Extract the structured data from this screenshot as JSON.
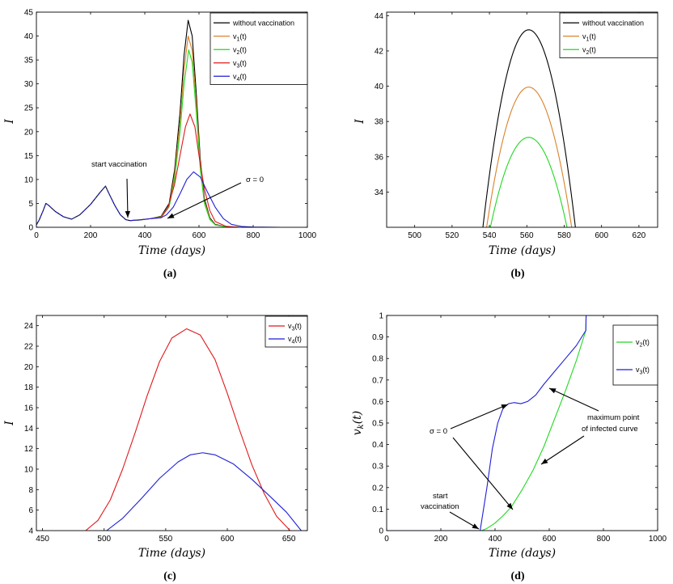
{
  "colors": {
    "without_vaccination": "#000000",
    "v1": "#d9822b",
    "v2": "#22d822",
    "v3": "#e0191b",
    "v4": "#1f1fd6"
  },
  "chart_data": [
    {
      "panel": "(a)",
      "type": "line",
      "xlabel": "Time (days)",
      "ylabel": "I",
      "xlim": [
        0,
        1000
      ],
      "ylim": [
        0,
        45
      ],
      "xticks": [
        0,
        200,
        400,
        600,
        800,
        1000
      ],
      "yticks": [
        0,
        5,
        10,
        15,
        20,
        25,
        30,
        35,
        40,
        45
      ],
      "legend": "top-right",
      "series": [
        {
          "name": "without vaccination",
          "color": "#000000",
          "points": [
            [
              0,
              0.5
            ],
            [
              10,
              1.5
            ],
            [
              25,
              3.5
            ],
            [
              35,
              5.0
            ],
            [
              45,
              4.6
            ],
            [
              70,
              3.3
            ],
            [
              100,
              2.2
            ],
            [
              130,
              1.7
            ],
            [
              160,
              2.6
            ],
            [
              200,
              4.8
            ],
            [
              235,
              7.3
            ],
            [
              255,
              8.6
            ],
            [
              270,
              6.8
            ],
            [
              290,
              4.5
            ],
            [
              310,
              2.6
            ],
            [
              330,
              1.6
            ],
            [
              345,
              1.4
            ],
            [
              380,
              1.5
            ],
            [
              420,
              1.8
            ],
            [
              460,
              2.3
            ],
            [
              490,
              5
            ],
            [
              510,
              12
            ],
            [
              530,
              24
            ],
            [
              545,
              36
            ],
            [
              560,
              43.3
            ],
            [
              575,
              40
            ],
            [
              590,
              28
            ],
            [
              605,
              14
            ],
            [
              620,
              6
            ],
            [
              640,
              2
            ],
            [
              660,
              0.6
            ],
            [
              700,
              0.1
            ],
            [
              750,
              0
            ]
          ]
        },
        {
          "name": "v1(t)",
          "color": "#d9822b",
          "points": [
            [
              345,
              1.4
            ],
            [
              380,
              1.5
            ],
            [
              420,
              1.8
            ],
            [
              460,
              2.2
            ],
            [
              490,
              4.5
            ],
            [
              510,
              11
            ],
            [
              530,
              22
            ],
            [
              545,
              33
            ],
            [
              560,
              40
            ],
            [
              575,
              37
            ],
            [
              590,
              26
            ],
            [
              605,
              13
            ],
            [
              620,
              5.5
            ],
            [
              640,
              1.8
            ],
            [
              660,
              0.5
            ],
            [
              700,
              0.1
            ],
            [
              750,
              0
            ]
          ]
        },
        {
          "name": "v2(t)",
          "color": "#22d822",
          "points": [
            [
              345,
              1.4
            ],
            [
              380,
              1.5
            ],
            [
              420,
              1.8
            ],
            [
              460,
              2.1
            ],
            [
              490,
              4.3
            ],
            [
              510,
              10
            ],
            [
              530,
              20
            ],
            [
              545,
              30
            ],
            [
              562,
              37.1
            ],
            [
              575,
              34.5
            ],
            [
              590,
              24
            ],
            [
              605,
              12
            ],
            [
              620,
              5
            ],
            [
              640,
              1.6
            ],
            [
              660,
              0.5
            ],
            [
              700,
              0.1
            ],
            [
              750,
              0
            ]
          ]
        },
        {
          "name": "v3(t)",
          "color": "#e0191b",
          "points": [
            [
              345,
              1.4
            ],
            [
              380,
              1.55
            ],
            [
              420,
              1.8
            ],
            [
              460,
              2.0
            ],
            [
              485,
              4
            ],
            [
              510,
              9
            ],
            [
              530,
              15
            ],
            [
              550,
              21
            ],
            [
              567,
              23.7
            ],
            [
              585,
              21
            ],
            [
              600,
              15
            ],
            [
              620,
              8
            ],
            [
              640,
              3.5
            ],
            [
              660,
              1.2
            ],
            [
              700,
              0.2
            ],
            [
              750,
              0
            ]
          ]
        },
        {
          "name": "v4(t)",
          "color": "#1f1fd6",
          "points": [
            [
              345,
              1.4
            ],
            [
              380,
              1.55
            ],
            [
              420,
              1.8
            ],
            [
              460,
              2.0
            ],
            [
              480,
              2.6
            ],
            [
              505,
              4.2
            ],
            [
              530,
              7
            ],
            [
              555,
              10
            ],
            [
              580,
              11.6
            ],
            [
              605,
              10.5
            ],
            [
              630,
              7.5
            ],
            [
              660,
              4.2
            ],
            [
              690,
              1.8
            ],
            [
              720,
              0.6
            ],
            [
              760,
              0.15
            ],
            [
              800,
              0.05
            ],
            [
              900,
              0
            ]
          ]
        }
      ],
      "annotations": [
        {
          "text": "start vaccination"
        },
        {
          "text": "σ = 0"
        }
      ]
    },
    {
      "panel": "(b)",
      "type": "line",
      "xlabel": "Time (days)",
      "ylabel": "I",
      "xlim": [
        485,
        630
      ],
      "ylim": [
        32,
        44.2
      ],
      "xticks": [
        500,
        520,
        540,
        560,
        580,
        600,
        620
      ],
      "yticks": [
        34,
        36,
        38,
        40,
        42,
        44
      ],
      "legend": "top-right",
      "series": [
        {
          "name": "without vaccination",
          "color": "#000000",
          "peak_x": 561,
          "peak_y": 43.2,
          "base_left": 536.5,
          "base_right": 586,
          "base_y": 32
        },
        {
          "name": "v1(t)",
          "color": "#d9822b",
          "peak_x": 561,
          "peak_y": 39.95,
          "base_left": 538.5,
          "base_right": 584,
          "base_y": 32
        },
        {
          "name": "v2(t)",
          "color": "#22d822",
          "peak_x": 561,
          "peak_y": 37.1,
          "base_left": 540.5,
          "base_right": 581.5,
          "base_y": 32
        }
      ]
    },
    {
      "panel": "(c)",
      "type": "line",
      "xlabel": "Time (days)",
      "ylabel": "I",
      "xlim": [
        445,
        665
      ],
      "ylim": [
        4,
        25
      ],
      "xticks": [
        450,
        500,
        550,
        600,
        650
      ],
      "yticks": [
        4,
        6,
        8,
        10,
        12,
        14,
        16,
        18,
        20,
        22,
        24
      ],
      "legend": "top-right",
      "series": [
        {
          "name": "v3(t)",
          "color": "#e0191b",
          "points": [
            [
              485,
              4
            ],
            [
              495,
              5
            ],
            [
              505,
              7
            ],
            [
              515,
              10
            ],
            [
              525,
              13.5
            ],
            [
              535,
              17.2
            ],
            [
              545,
              20.5
            ],
            [
              555,
              22.8
            ],
            [
              567,
              23.7
            ],
            [
              578,
              23.1
            ],
            [
              590,
              20.7
            ],
            [
              600,
              17.4
            ],
            [
              610,
              13.8
            ],
            [
              620,
              10.4
            ],
            [
              630,
              7.6
            ],
            [
              640,
              5.4
            ],
            [
              651,
              4
            ]
          ]
        },
        {
          "name": "v4(t)",
          "color": "#1f1fd6",
          "points": [
            [
              502,
              4
            ],
            [
              515,
              5.2
            ],
            [
              530,
              7.1
            ],
            [
              545,
              9.1
            ],
            [
              560,
              10.7
            ],
            [
              570,
              11.4
            ],
            [
              580,
              11.6
            ],
            [
              590,
              11.4
            ],
            [
              605,
              10.5
            ],
            [
              620,
              9.0
            ],
            [
              635,
              7.3
            ],
            [
              648,
              5.8
            ],
            [
              660,
              4
            ]
          ]
        }
      ]
    },
    {
      "panel": "(d)",
      "type": "line",
      "xlabel": "Time (days)",
      "ylabel": "v_k(t)",
      "xlim": [
        0,
        1000
      ],
      "ylim": [
        0,
        1
      ],
      "xticks": [
        0,
        200,
        400,
        600,
        800,
        1000
      ],
      "yticks": [
        0,
        0.1,
        0.2,
        0.3,
        0.4,
        0.5,
        0.6,
        0.7,
        0.8,
        0.9,
        1
      ],
      "legend": "top-right",
      "series": [
        {
          "name": "v2(t)",
          "color": "#22d822",
          "points": [
            [
              0,
              0
            ],
            [
              350,
              0
            ],
            [
              370,
              0.01
            ],
            [
              400,
              0.035
            ],
            [
              430,
              0.07
            ],
            [
              460,
              0.11
            ],
            [
              500,
              0.19
            ],
            [
              540,
              0.28
            ],
            [
              580,
              0.39
            ],
            [
              620,
              0.52
            ],
            [
              660,
              0.65
            ],
            [
              700,
              0.79
            ],
            [
              735,
              0.93
            ],
            [
              736,
              1
            ],
            [
              900,
              1
            ]
          ]
        },
        {
          "name": "v3(t)",
          "color": "#1f1fd6",
          "points": [
            [
              0,
              0
            ],
            [
              345,
              0
            ],
            [
              370,
              0.2
            ],
            [
              390,
              0.38
            ],
            [
              410,
              0.5
            ],
            [
              430,
              0.57
            ],
            [
              450,
              0.59
            ],
            [
              470,
              0.595
            ],
            [
              495,
              0.59
            ],
            [
              520,
              0.6
            ],
            [
              550,
              0.63
            ],
            [
              580,
              0.68
            ],
            [
              620,
              0.74
            ],
            [
              660,
              0.8
            ],
            [
              700,
              0.86
            ],
            [
              735,
              0.93
            ],
            [
              736,
              1
            ],
            [
              900,
              1
            ]
          ]
        }
      ],
      "annotations": [
        {
          "text": "σ = 0"
        },
        {
          "text": "start"
        },
        {
          "text": "vaccination"
        },
        {
          "text": "maximum point"
        },
        {
          "text": "of infected curve"
        }
      ]
    }
  ]
}
